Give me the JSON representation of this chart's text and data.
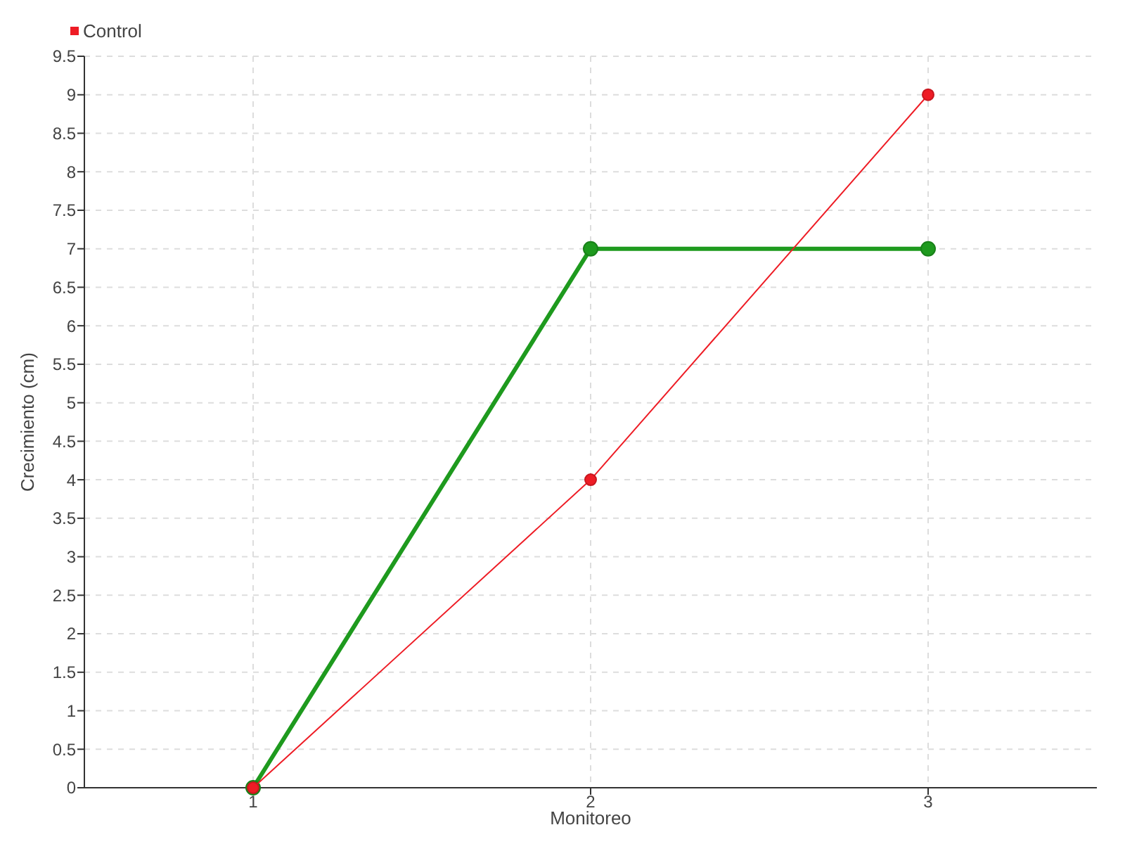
{
  "chart_data": {
    "type": "line",
    "xlabel": "Monitoreo",
    "ylabel": "Crecimiento (cm)",
    "categories": [
      "1",
      "2",
      "3"
    ],
    "series": [
      {
        "color": "#1e9a1e",
        "values": [
          0,
          7,
          7
        ]
      },
      {
        "name": "Control",
        "color": "#ee1c25",
        "values": [
          0,
          4,
          9
        ]
      }
    ],
    "ylim": [
      0,
      9.5
    ],
    "yticks": [
      0,
      0.5,
      1,
      1.5,
      2,
      2.5,
      3,
      3.5,
      4,
      4.5,
      5,
      5.5,
      6,
      6.5,
      7,
      7.5,
      8,
      8.5,
      9,
      9.5
    ],
    "grid": true,
    "legend": "top left",
    "marker": "circle"
  }
}
